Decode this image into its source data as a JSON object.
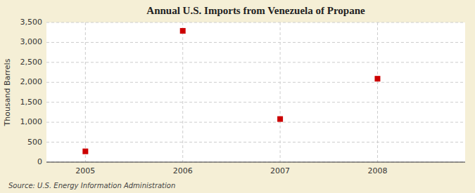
{
  "chart_data": {
    "type": "scatter",
    "title": "Annual U.S. Imports from Venezuela of Propane",
    "y_label": "Thousand Barrels",
    "source": "Source: U.S. Energy Information Administration",
    "x": [
      2005,
      2006,
      2007,
      2008
    ],
    "values": [
      270,
      3290,
      1080,
      2090
    ],
    "color": "#cc0000",
    "marker": "square",
    "xlim": [
      2004.6,
      2008.9
    ],
    "ylim": [
      0,
      3500
    ],
    "xticks": [
      2005,
      2006,
      2007,
      2008
    ],
    "yticks": [
      0,
      500,
      {
        "value": 1000,
        "label": "1,000"
      },
      {
        "value": 1500,
        "label": "1,500"
      },
      {
        "value": 2000,
        "label": "2,000"
      },
      {
        "value": 2500,
        "label": "2,500"
      },
      {
        "value": 3000,
        "label": "3,000"
      },
      {
        "value": 3500,
        "label": "3,500"
      }
    ],
    "grid": true
  }
}
